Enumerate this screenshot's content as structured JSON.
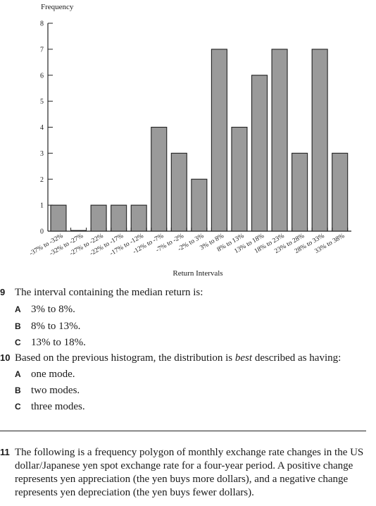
{
  "chart_data": {
    "type": "bar",
    "ylabel": "Frequency",
    "xlabel": "Return Intervals",
    "ylim": [
      0,
      8
    ],
    "yticks": [
      0,
      1,
      2,
      3,
      4,
      5,
      6,
      7,
      8
    ],
    "categories": [
      "-37% to -32%",
      "-32% to -27%",
      "-27% to -22%",
      "-22% to -17%",
      "-17% to -12%",
      "-12% to -7%",
      "-7% to -2%",
      "-2% to 3%",
      "3% to 8%",
      "8% to 13%",
      "13% to 18%",
      "18% to 23%",
      "23% to 28%",
      "28% to 33%",
      "33% to 38%"
    ],
    "values": [
      1,
      0,
      1,
      1,
      1,
      4,
      3,
      2,
      7,
      4,
      6,
      7,
      3,
      7,
      3
    ],
    "bar_color": "#9a9a9a",
    "grid": false
  },
  "questions": [
    {
      "number": "9",
      "text": "The interval containing the median return is:",
      "options": [
        {
          "letter": "A",
          "text": "3% to 8%."
        },
        {
          "letter": "B",
          "text": "8% to 13%."
        },
        {
          "letter": "C",
          "text": "13% to 18%."
        }
      ]
    },
    {
      "number": "10",
      "text_before": "Based on the previous histogram, the distribution is ",
      "text_emphasis": "best",
      "text_after": " described as having:",
      "options": [
        {
          "letter": "A",
          "text": "one mode."
        },
        {
          "letter": "B",
          "text": "two modes."
        },
        {
          "letter": "C",
          "text": "three modes."
        }
      ]
    },
    {
      "number": "11",
      "text": "The following is a frequency polygon of monthly exchange rate changes in the US dollar/Japanese yen spot exchange rate for a four-year period. A positive change represents yen appreciation (the yen buys more dollars), and a negative change represents yen depreciation (the yen buys fewer dollars)."
    }
  ]
}
